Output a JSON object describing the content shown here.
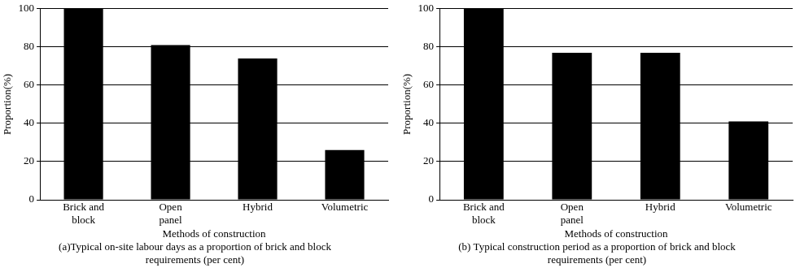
{
  "chart_data": [
    {
      "type": "bar",
      "title": "(a)Typical on-site labour days as a proportion of brick and block requirements (per cent)",
      "x_label": "Methods of construction",
      "y_label": "Proportion(%)",
      "categories": [
        "Brick and block",
        "Open panel",
        "Hybrid",
        "Volumetric"
      ],
      "values": [
        100,
        81,
        74,
        26
      ],
      "color": "#000000",
      "ylim": [
        0,
        100
      ],
      "yticks": [
        0,
        20,
        40,
        60,
        80,
        100
      ],
      "grid": true
    },
    {
      "type": "bar",
      "title": "(b) Typical construction period as a proportion of brick and block requirements (per cent)",
      "x_label": "Methods of construction",
      "y_label": "Proportion(%)",
      "categories": [
        "Brick and block",
        "Open panel",
        "Hybrid",
        "Volumetric"
      ],
      "values": [
        100,
        77,
        77,
        41
      ],
      "color": "#000000",
      "ylim": [
        0,
        100
      ],
      "yticks": [
        0,
        20,
        40,
        60,
        80,
        100
      ],
      "grid": true
    }
  ]
}
